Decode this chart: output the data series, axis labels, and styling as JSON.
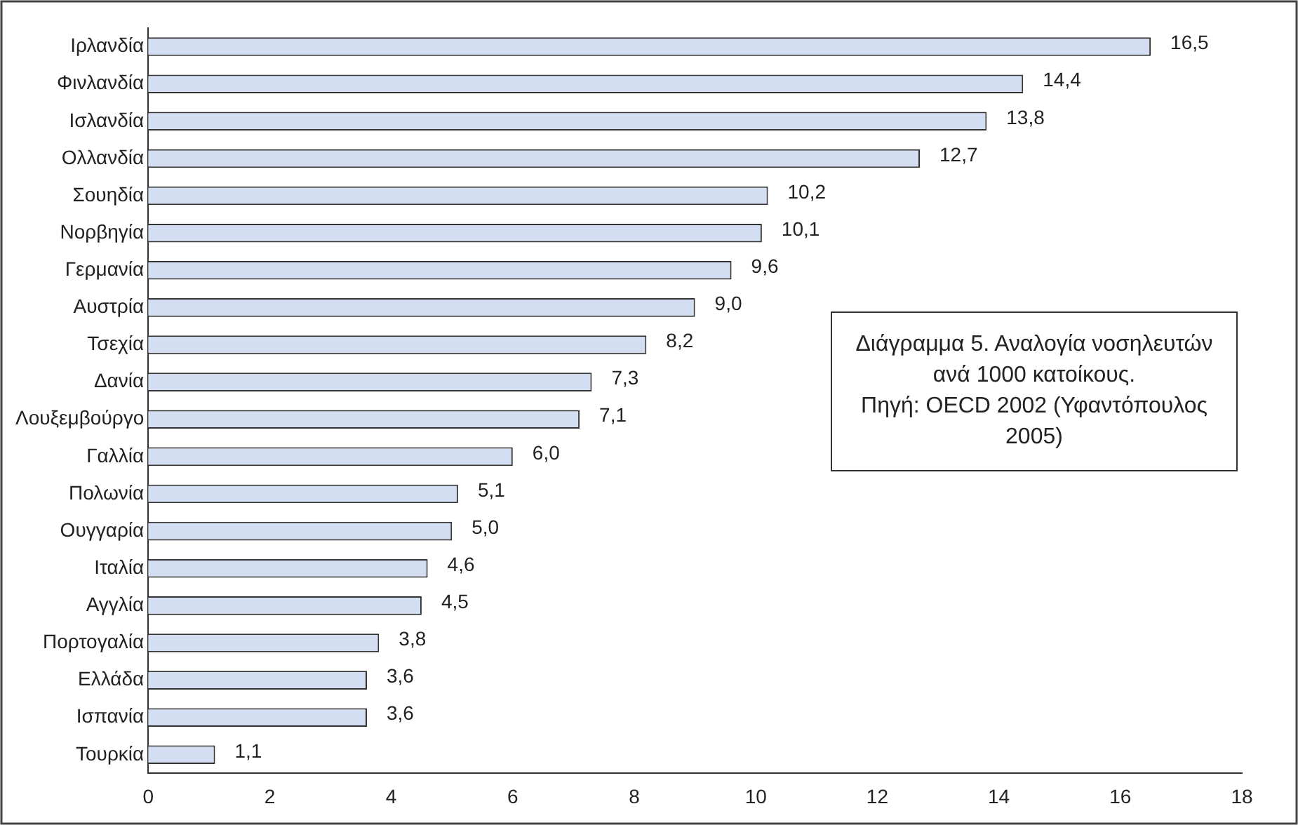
{
  "chart_data": {
    "type": "bar",
    "orientation": "horizontal",
    "title": "Διάγραμμα 5. Αναλογία  νοσηλευτών ανά 1000 κατοίκους.",
    "annotations": [
      "Πηγή: OECD 2002 (Υφαντόπουλος 2005)"
    ],
    "categories": [
      "Ιρλανδία",
      "Φινλανδία",
      "Ισλανδία",
      "Ολλανδία",
      "Σουηδία",
      "Νορβηγία",
      "Γερμανία",
      "Αυστρία",
      "Τσεχία",
      "Δανία",
      "Λουξεμβούργο",
      "Γαλλία",
      "Πολωνία",
      "Ουγγαρία",
      "Ιταλία",
      "Αγγλία",
      "Πορτογαλία",
      "Ελλάδα",
      "Ισπανία",
      "Τουρκία"
    ],
    "values": [
      16.5,
      14.4,
      13.8,
      12.7,
      10.2,
      10.1,
      9.6,
      9.0,
      8.2,
      7.3,
      7.1,
      6.0,
      5.1,
      5.0,
      4.6,
      4.5,
      3.8,
      3.6,
      3.6,
      1.1
    ],
    "value_labels": [
      "16,5",
      "14,4",
      "13,8",
      "12,7",
      "10,2",
      "10,1",
      "9,6",
      "9,0",
      "8,2",
      "7,3",
      "7,1",
      "6,0",
      "5,1",
      "5,0",
      "4,6",
      "4,5",
      "3,8",
      "3,6",
      "3,6",
      "1,1"
    ],
    "color": "#d3def2",
    "xlim": [
      0,
      18
    ],
    "xticks": [
      0,
      2,
      4,
      6,
      8,
      10,
      12,
      14,
      16,
      18
    ],
    "grid": false,
    "legend": false
  }
}
